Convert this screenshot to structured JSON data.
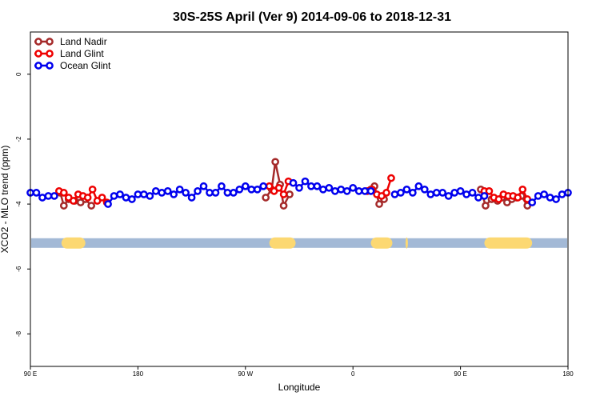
{
  "chart_data": {
    "type": "line",
    "title": "30S-25S April (Ver 9)   2014-09-06 to 2018-12-31",
    "xlabel": "Longitude",
    "ylabel": "XCO2 - MLO trend (ppm)",
    "x_ticks": [
      {
        "value": 90,
        "label": "90 E"
      },
      {
        "value": 180,
        "label": "180"
      },
      {
        "value": 270,
        "label": "90 W"
      },
      {
        "value": 360,
        "label": "0"
      },
      {
        "value": 450,
        "label": "90 E"
      },
      {
        "value": 540,
        "label": "180"
      }
    ],
    "y_ticks": [
      {
        "value": 0,
        "label": "0"
      },
      {
        "value": -2,
        "label": "-2"
      },
      {
        "value": -4,
        "label": "-4"
      },
      {
        "value": -6,
        "label": "-6"
      },
      {
        "value": -8,
        "label": "-8"
      }
    ],
    "xlim": [
      90,
      540
    ],
    "ylim": [
      -9,
      1.3
    ],
    "grid": false,
    "legend_position": "top-left",
    "land_ocean_strip": {
      "y": -5.2,
      "ocean_color": "#a3b9d6",
      "land_color": "#fcd872",
      "land_ranges": [
        [
          116,
          136
        ],
        [
          290,
          312
        ],
        [
          375,
          393
        ],
        [
          404,
          406
        ],
        [
          470,
          510
        ]
      ]
    },
    "series": [
      {
        "name": "Land Nadir",
        "color": "#a52a2a",
        "x": [
          115,
          118,
          122,
          127,
          132,
          136,
          141,
          287,
          292,
          295,
          299,
          302,
          307,
          375,
          378,
          382,
          386,
          467,
          471,
          476,
          481,
          485,
          489,
          493,
          497,
          501,
          506
        ],
        "y": [
          -3.65,
          -4.05,
          -3.85,
          -3.9,
          -3.95,
          -3.85,
          -4.05,
          -3.8,
          -3.55,
          -2.7,
          -3.4,
          -4.05,
          -3.7,
          -3.55,
          -3.45,
          -4.0,
          -3.85,
          -3.55,
          -4.05,
          -3.85,
          -3.9,
          -3.8,
          -3.95,
          -3.85,
          -3.8,
          -3.75,
          -4.05
        ]
      },
      {
        "name": "Land Glint",
        "color": "#ee0000",
        "x": [
          114,
          118,
          122,
          126,
          130,
          134,
          138,
          142,
          146,
          150,
          154,
          290,
          294,
          298,
          302,
          306,
          372,
          376,
          380,
          384,
          388,
          392,
          470,
          474,
          478,
          482,
          486,
          490,
          494,
          498,
          502,
          506
        ],
        "y": [
          -3.6,
          -3.65,
          -3.8,
          -3.9,
          -3.7,
          -3.75,
          -3.8,
          -3.55,
          -3.9,
          -3.8,
          -3.95,
          -3.45,
          -3.6,
          -3.5,
          -3.7,
          -3.3,
          -3.6,
          -3.55,
          -3.7,
          -3.75,
          -3.65,
          -3.2,
          -3.6,
          -3.6,
          -3.8,
          -3.85,
          -3.7,
          -3.75,
          -3.75,
          -3.8,
          -3.55,
          -3.85
        ]
      },
      {
        "name": "Ocean Glint",
        "color": "#0000ee",
        "x": [
          90,
          95,
          100,
          105,
          110,
          155,
          160,
          165,
          170,
          175,
          180,
          185,
          190,
          195,
          200,
          205,
          210,
          215,
          220,
          225,
          230,
          235,
          240,
          245,
          250,
          255,
          260,
          265,
          270,
          275,
          280,
          285,
          310,
          315,
          320,
          325,
          330,
          335,
          340,
          345,
          350,
          355,
          360,
          365,
          370,
          375,
          395,
          400,
          405,
          410,
          415,
          420,
          425,
          430,
          435,
          440,
          445,
          450,
          455,
          460,
          465,
          470,
          510,
          515,
          520,
          525,
          530,
          535,
          540
        ],
        "y": [
          -3.65,
          -3.65,
          -3.8,
          -3.75,
          -3.75,
          -4.0,
          -3.75,
          -3.7,
          -3.8,
          -3.85,
          -3.7,
          -3.7,
          -3.75,
          -3.6,
          -3.65,
          -3.6,
          -3.7,
          -3.55,
          -3.65,
          -3.8,
          -3.6,
          -3.45,
          -3.65,
          -3.65,
          -3.45,
          -3.65,
          -3.65,
          -3.55,
          -3.45,
          -3.55,
          -3.55,
          -3.45,
          -3.35,
          -3.5,
          -3.3,
          -3.45,
          -3.45,
          -3.55,
          -3.5,
          -3.6,
          -3.55,
          -3.6,
          -3.5,
          -3.6,
          -3.6,
          -3.6,
          -3.7,
          -3.65,
          -3.55,
          -3.65,
          -3.45,
          -3.55,
          -3.7,
          -3.65,
          -3.65,
          -3.75,
          -3.65,
          -3.6,
          -3.7,
          -3.65,
          -3.8,
          -3.75,
          -3.95,
          -3.75,
          -3.7,
          -3.8,
          -3.85,
          -3.7,
          -3.65
        ]
      }
    ]
  }
}
